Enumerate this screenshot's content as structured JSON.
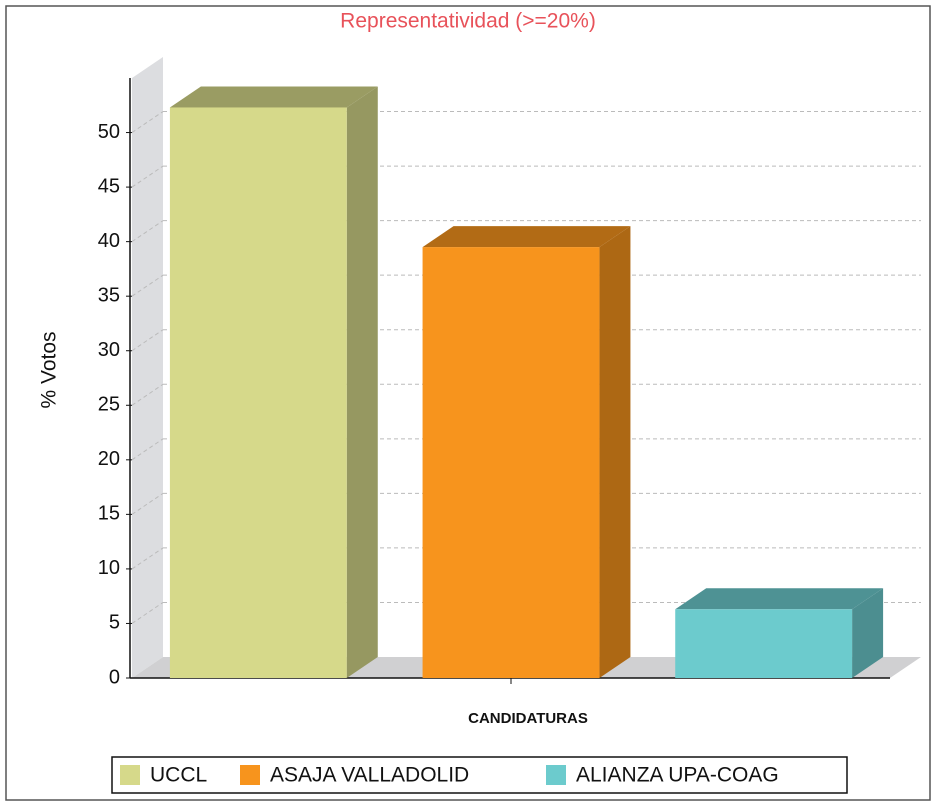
{
  "chart_data": {
    "type": "bar",
    "title": "Representatividad (>=20%)",
    "xlabel": "CANDIDATURAS",
    "ylabel": "% Votos",
    "categories": [
      "UCCL",
      "ASAJA VALLADOLID",
      "ALIANZA UPA-COAG"
    ],
    "values": [
      52.3,
      39.5,
      6.3
    ],
    "colors": [
      "#d6d98a",
      "#f7941d",
      "#6ccbcd"
    ],
    "ylim": [
      0,
      55
    ],
    "yticks": [
      0,
      5,
      10,
      15,
      20,
      25,
      30,
      35,
      40,
      45,
      50
    ],
    "grid": true
  }
}
